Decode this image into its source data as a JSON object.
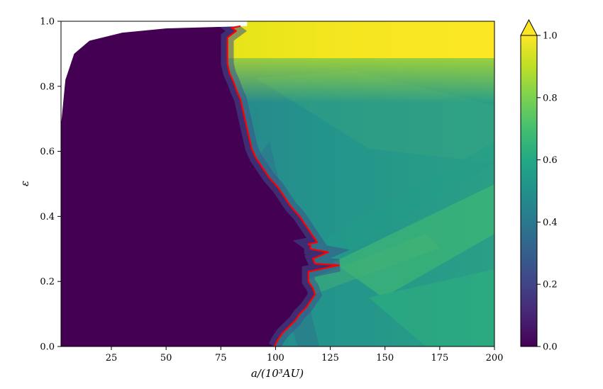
{
  "chart_data": {
    "type": "heatmap",
    "title": "",
    "xlabel": "a/(10³AU)",
    "ylabel": "ε",
    "xlim": [
      2,
      200
    ],
    "ylim": [
      0.0,
      1.0
    ],
    "xticks": [
      "25",
      "50",
      "75",
      "100",
      "125",
      "150",
      "175",
      "200"
    ],
    "yticks": [
      "0.0",
      "0.2",
      "0.4",
      "0.6",
      "0.8",
      "1.0"
    ],
    "colorbar": {
      "ticks": [
        "0.0",
        "0.2",
        "0.4",
        "0.6",
        "0.8",
        "1.0"
      ],
      "range": [
        0.0,
        1.0
      ],
      "extend": "max",
      "colormap": "viridis"
    },
    "excluded_region_boundary": {
      "description": "white region where a(1+e) exceeds limit",
      "points": [
        [
          2,
          0.68
        ],
        [
          4,
          0.82
        ],
        [
          8,
          0.9
        ],
        [
          15,
          0.94
        ],
        [
          30,
          0.965
        ],
        [
          50,
          0.978
        ],
        [
          87,
          0.985
        ]
      ]
    },
    "contour_line": {
      "color": "#ff0000",
      "points": [
        [
          99.5,
          0.0
        ],
        [
          101,
          0.02
        ],
        [
          103,
          0.04
        ],
        [
          106,
          0.06
        ],
        [
          109,
          0.08
        ],
        [
          111,
          0.1
        ],
        [
          114,
          0.12
        ],
        [
          116,
          0.14
        ],
        [
          118,
          0.16
        ],
        [
          117,
          0.18
        ],
        [
          115,
          0.2
        ],
        [
          115,
          0.23
        ],
        [
          129,
          0.25
        ],
        [
          118,
          0.255
        ],
        [
          117,
          0.27
        ],
        [
          124,
          0.29
        ],
        [
          116,
          0.3
        ],
        [
          116,
          0.31
        ],
        [
          115,
          0.315
        ],
        [
          119,
          0.32
        ],
        [
          118,
          0.33
        ],
        [
          116,
          0.35
        ],
        [
          114,
          0.37
        ],
        [
          111,
          0.4
        ],
        [
          107,
          0.43
        ],
        [
          104,
          0.46
        ],
        [
          101,
          0.49
        ],
        [
          97,
          0.52
        ],
        [
          94,
          0.55
        ],
        [
          91,
          0.58
        ],
        [
          89,
          0.61
        ],
        [
          88,
          0.64
        ],
        [
          87,
          0.67
        ],
        [
          86,
          0.7
        ],
        [
          85,
          0.73
        ],
        [
          84,
          0.76
        ],
        [
          82,
          0.79
        ],
        [
          81,
          0.81
        ],
        [
          79,
          0.84
        ],
        [
          78,
          0.87
        ],
        [
          78,
          0.9
        ],
        [
          78,
          0.95
        ],
        [
          82,
          0.97
        ],
        [
          80,
          0.98
        ],
        [
          84,
          0.985
        ]
      ]
    }
  }
}
